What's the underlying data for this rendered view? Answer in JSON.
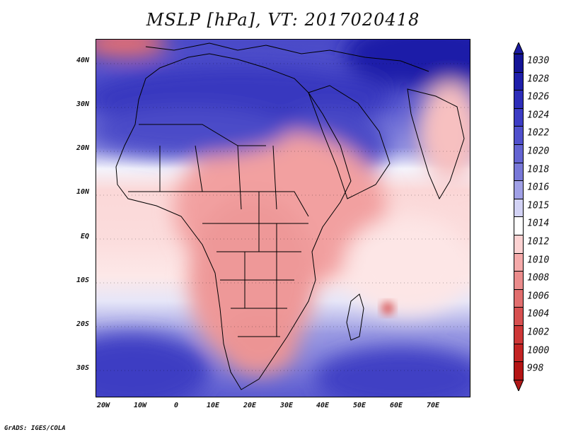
{
  "title": "MSLP [hPa], VT: 2017020418",
  "credit": "GrADS: IGES/COLA",
  "lat_labels": [
    "40N",
    "30N",
    "20N",
    "10N",
    "EQ",
    "10S",
    "20S",
    "30S"
  ],
  "lon_labels": [
    "20W",
    "10W",
    "0",
    "10E",
    "20E",
    "30E",
    "40E",
    "50E",
    "60E",
    "70E"
  ],
  "colorbar": {
    "levels": [
      "1030",
      "1028",
      "1026",
      "1024",
      "1022",
      "1020",
      "1018",
      "1016",
      "1015",
      "1014",
      "1012",
      "1010",
      "1008",
      "1006",
      "1004",
      "1002",
      "1000",
      "998"
    ],
    "colors": [
      "#141496",
      "#1e1eaa",
      "#2d2db9",
      "#3c3cc4",
      "#5050cc",
      "#6464d2",
      "#7878d8",
      "#a0a0e6",
      "#d2d2f4",
      "#ffffff",
      "#fcd2d2",
      "#f5aaaa",
      "#eb8c8c",
      "#e16e6e",
      "#d75050",
      "#cd3737",
      "#c32323",
      "#b41414"
    ],
    "top_color": "#1a1aa0",
    "bottom_color": "#b01818"
  }
}
